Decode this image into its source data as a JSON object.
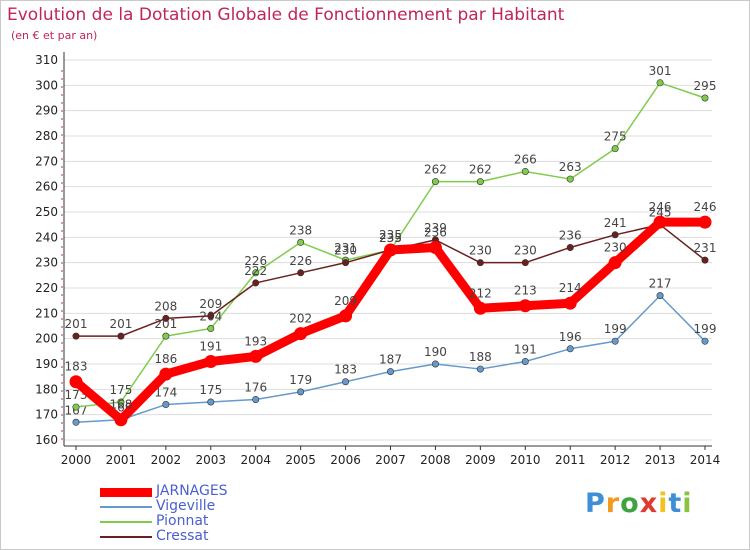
{
  "header": {
    "title": "Evolution de la Dotation Globale de Fonctionnement par Habitant",
    "subtitle": "(en € et par an)"
  },
  "colors": {
    "title": "#c0245c",
    "legend_text": "#4a5fd0",
    "axis_text": "#222222",
    "value_label": "#444444",
    "grid": "#dddddd"
  },
  "logo": {
    "letters": [
      "P",
      "r",
      "o",
      "x",
      "i",
      "t",
      "i"
    ],
    "colors": [
      "#3f8fd6",
      "#f29a1f",
      "#3fa33f",
      "#e03a2f",
      "#f2c21f",
      "#3f8fd6",
      "#8ac43f"
    ]
  },
  "chart_data": {
    "type": "line",
    "title": "Evolution de la Dotation Globale de Fonctionnement par Habitant",
    "subtitle": "(en € et par an)",
    "categories": [
      "2000",
      "2001",
      "2002",
      "2003",
      "2004",
      "2005",
      "2006",
      "2007",
      "2008",
      "2009",
      "2010",
      "2011",
      "2012",
      "2013",
      "2014"
    ],
    "ylim": [
      160,
      310
    ],
    "yticks": [
      160,
      170,
      180,
      190,
      200,
      210,
      220,
      230,
      240,
      250,
      260,
      270,
      280,
      290,
      300,
      310
    ],
    "grid": true,
    "legend_position": "bottom-left",
    "series": [
      {
        "name": "JARNAGES",
        "color": "#ff0000",
        "emphasis": true,
        "values": [
          183,
          168,
          186,
          191,
          193,
          202,
          209,
          235,
          236,
          212,
          213,
          214,
          230,
          246,
          246
        ]
      },
      {
        "name": "Vigeville",
        "color": "#6699cc",
        "values": [
          167,
          168,
          174,
          175,
          176,
          179,
          183,
          187,
          190,
          188,
          191,
          196,
          199,
          217,
          199
        ]
      },
      {
        "name": "Pionnat",
        "color": "#7fcc4c",
        "values": [
          173,
          175,
          201,
          204,
          226,
          238,
          231,
          235,
          262,
          262,
          266,
          263,
          275,
          301,
          295
        ]
      },
      {
        "name": "Cressat",
        "color": "#6b1f1f",
        "values": [
          201,
          201,
          208,
          209,
          222,
          226,
          230,
          235,
          239,
          230,
          230,
          236,
          241,
          245,
          231
        ]
      }
    ]
  }
}
